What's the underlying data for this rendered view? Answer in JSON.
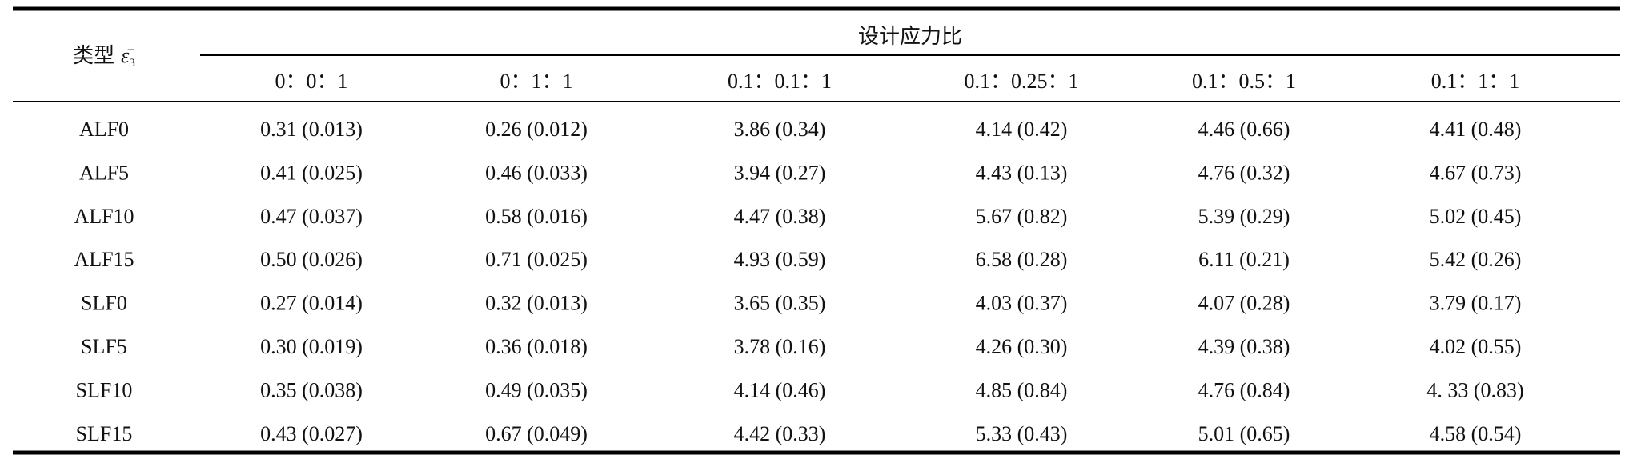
{
  "table": {
    "type_label": "类型",
    "symbol": "ε̄",
    "symbol_sub": "3",
    "group_header": "设计应力比",
    "columns": [
      "0：0：1",
      "0：1：1",
      "0.1：0.1：1",
      "0.1：0.25：1",
      "0.1：0.5：1",
      "0.1：1：1"
    ],
    "rows": [
      [
        "ALF0",
        "0.31 (0.013)",
        "0.26 (0.012)",
        "3.86 (0.34)",
        "4.14 (0.42)",
        "4.46 (0.66)",
        "4.41 (0.48)"
      ],
      [
        "ALF5",
        "0.41 (0.025)",
        "0.46 (0.033)",
        "3.94 (0.27)",
        "4.43 (0.13)",
        "4.76 (0.32)",
        "4.67 (0.73)"
      ],
      [
        "ALF10",
        "0.47 (0.037)",
        "0.58 (0.016)",
        "4.47 (0.38)",
        "5.67 (0.82)",
        "5.39 (0.29)",
        "5.02 (0.45)"
      ],
      [
        "ALF15",
        "0.50 (0.026)",
        "0.71 (0.025)",
        "4.93 (0.59)",
        "6.58 (0.28)",
        "6.11 (0.21)",
        "5.42 (0.26)"
      ],
      [
        "SLF0",
        "0.27 (0.014)",
        "0.32 (0.013)",
        "3.65 (0.35)",
        "4.03 (0.37)",
        "4.07 (0.28)",
        "3.79 (0.17)"
      ],
      [
        "SLF5",
        "0.30 (0.019)",
        "0.36 (0.018)",
        "3.78 (0.16)",
        "4.26 (0.30)",
        "4.39 (0.38)",
        "4.02 (0.55)"
      ],
      [
        "SLF10",
        "0.35 (0.038)",
        "0.49 (0.035)",
        "4.14 (0.46)",
        "4.85 (0.84)",
        "4.76 (0.84)",
        "4. 33 (0.83)"
      ],
      [
        "SLF15",
        "0.43 (0.027)",
        "0.67 (0.049)",
        "4.42 (0.33)",
        "5.33 (0.43)",
        "5.01 (0.65)",
        "4.58 (0.54)"
      ]
    ]
  }
}
